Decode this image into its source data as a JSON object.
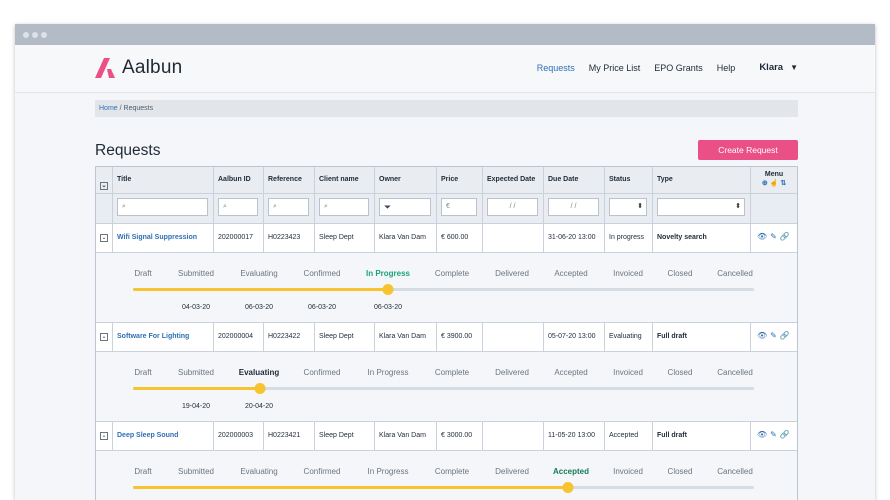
{
  "brand": {
    "name": "Aalbun",
    "color": "#ea4f86"
  },
  "nav": {
    "items": [
      "Requests",
      "My Price List",
      "EPO Grants",
      "Help"
    ],
    "active": "Requests",
    "user": "Klara"
  },
  "breadcrumb": {
    "home": "Home",
    "sep": " / ",
    "current": "Requests"
  },
  "page": {
    "title": "Requests",
    "create_label": "Create Request"
  },
  "table": {
    "columns": [
      "Title",
      "Aalbun ID",
      "Reference",
      "Client name",
      "Owner",
      "Price",
      "Expected Date",
      "Due Date",
      "Status",
      "Type",
      "Menu"
    ],
    "filters": {
      "price_placeholder": "€",
      "date_placeholder": "/   /"
    },
    "rows": [
      {
        "title": "Wifi Signal Suppression",
        "id": "202000017",
        "ref": "H0223423",
        "client": "Sleep Dept",
        "owner": "Klara Van Dam",
        "price": "€ 600.00",
        "expected": "",
        "due": "31-06-20 13:00",
        "status": "In progress",
        "type": "Novelty search"
      },
      {
        "title": "Software For Lighting",
        "id": "202000004",
        "ref": "H0223422",
        "client": "Sleep Dept",
        "owner": "Klara Van Dam",
        "price": "€ 3900.00",
        "expected": "",
        "due": "05-07-20 13:00",
        "status": "Evaluating",
        "type": "Full draft"
      },
      {
        "title": "Deep Sleep Sound",
        "id": "202000003",
        "ref": "H0223421",
        "client": "Sleep Dept",
        "owner": "Klara Van Dam",
        "price": "€ 3000.00",
        "expected": "",
        "due": "11-05-20 13:00",
        "status": "Accepted",
        "type": "Full draft"
      }
    ]
  },
  "stages": [
    "Draft",
    "Submitted",
    "Evaluating",
    "Confirmed",
    "In Progress",
    "Complete",
    "Delivered",
    "Accepted",
    "Invoiced",
    "Closed",
    "Cancelled"
  ],
  "progress": [
    {
      "current": 4,
      "fraction": 0.41,
      "dates": [
        "04-03-20",
        "06-03-20",
        "06-03-20",
        "06-03-20"
      ]
    },
    {
      "current": 2,
      "fraction": 0.204,
      "dates": [
        "19-04-20",
        "20-04-20"
      ]
    },
    {
      "current": 7,
      "fraction": 0.7
    }
  ],
  "colors": {
    "accent": "#2f6fb3",
    "progress": "#f7c32e",
    "status_green": "#1aa37b"
  }
}
